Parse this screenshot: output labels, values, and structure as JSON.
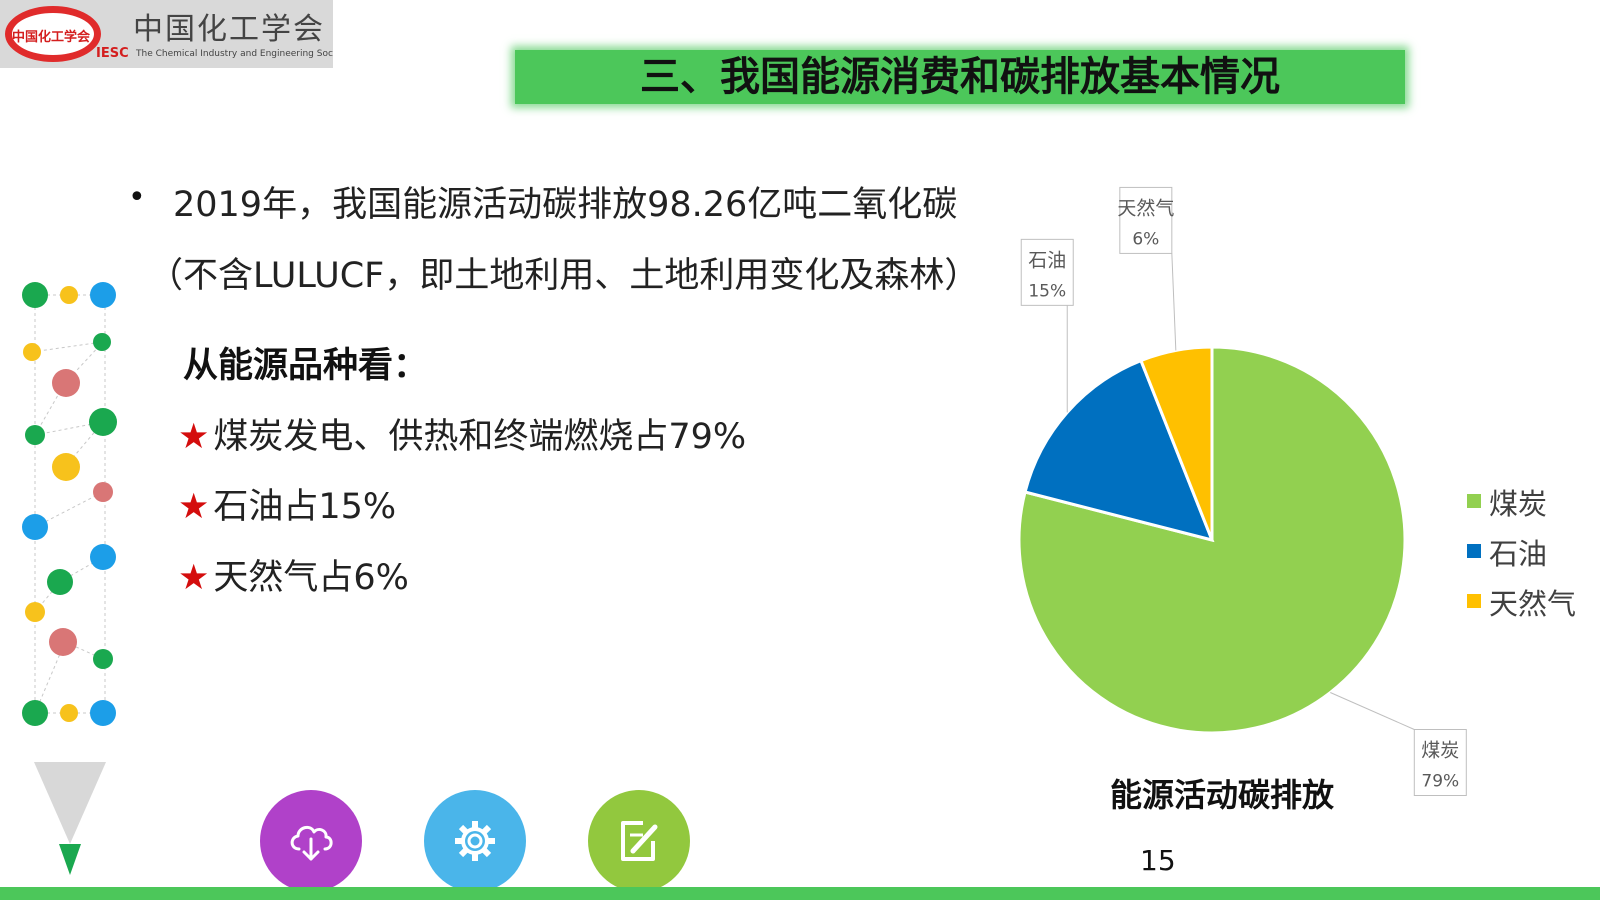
{
  "logo": {
    "ring_text": "中国化工学会",
    "abbr": "IESC",
    "cn_name": "中国化工学会",
    "en_name": "The Chemical Industry and Engineering Society of China"
  },
  "title": "三、我国能源消费和碳排放基本情况",
  "bullet": {
    "symbol": "•",
    "line1": "2019年，我国能源活动碳排放98.26亿吨二氧化碳",
    "line2": "（不含LULUCF，即土地利用、土地利用变化及森林）"
  },
  "subheading": "从能源品种看：",
  "items": [
    {
      "star": "★",
      "text": "煤炭发电、供热和终端燃烧占79%"
    },
    {
      "star": "★",
      "text": "石油占15%"
    },
    {
      "star": "★",
      "text": "天然气占6%"
    }
  ],
  "buttons": [
    {
      "name": "cloud-download-button",
      "icon": "cloud-download-icon",
      "color": "#b041c9"
    },
    {
      "name": "settings-button",
      "icon": "gear-icon",
      "color": "#4ab5ea"
    },
    {
      "name": "edit-button",
      "icon": "edit-icon",
      "color": "#92c83e"
    }
  ],
  "page_number": "15",
  "colors": {
    "accent_green": "#4cc75a",
    "star_red": "#d40d0d"
  },
  "chart_data": {
    "type": "pie",
    "title": "能源活动碳排放",
    "categories": [
      "煤炭",
      "石油",
      "天然气"
    ],
    "values": [
      79,
      15,
      6
    ],
    "data_labels": [
      "79%",
      "15%",
      "6%"
    ],
    "colors": [
      "#92d050",
      "#0070c0",
      "#ffc000"
    ],
    "legend_position": "right"
  }
}
